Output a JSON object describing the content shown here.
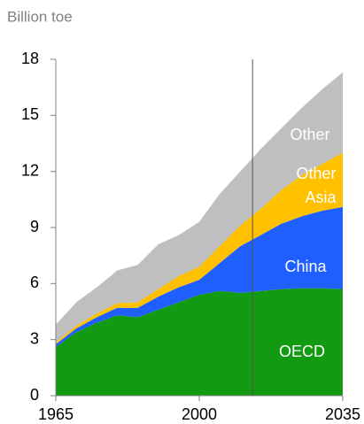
{
  "chart_data": {
    "type": "stacked_area",
    "title": "Billion toe",
    "x": [
      1965,
      1970,
      1975,
      1980,
      1985,
      1990,
      1995,
      2000,
      2005,
      2010,
      2015,
      2020,
      2025,
      2030,
      2035
    ],
    "series": [
      {
        "name": "OECD",
        "color": "#129a12",
        "values": [
          2.6,
          3.4,
          3.9,
          4.3,
          4.2,
          4.6,
          5.0,
          5.4,
          5.6,
          5.5,
          5.6,
          5.7,
          5.75,
          5.75,
          5.7
        ]
      },
      {
        "name": "China",
        "color": "#1f5fff",
        "values": [
          0.15,
          0.2,
          0.3,
          0.4,
          0.5,
          0.7,
          0.8,
          0.8,
          1.5,
          2.5,
          3.0,
          3.5,
          3.85,
          4.15,
          4.4
        ]
      },
      {
        "name": "Other Asia",
        "color": "#ffc000",
        "values": [
          0.1,
          0.15,
          0.2,
          0.25,
          0.3,
          0.4,
          0.6,
          0.7,
          0.9,
          1.1,
          1.4,
          1.8,
          2.2,
          2.5,
          2.9
        ]
      },
      {
        "name": "Other",
        "color": "#bfbfbf",
        "values": [
          0.95,
          1.25,
          1.4,
          1.75,
          2.0,
          2.4,
          2.2,
          2.4,
          2.8,
          2.9,
          3.2,
          3.3,
          3.6,
          4.0,
          4.3
        ]
      }
    ],
    "xlim": [
      1965,
      2035
    ],
    "xticks": [
      1965,
      2000,
      2035
    ],
    "ylim": [
      0,
      18
    ],
    "yticks": [
      0,
      3,
      6,
      9,
      12,
      15,
      18
    ],
    "vline": 2013
  }
}
